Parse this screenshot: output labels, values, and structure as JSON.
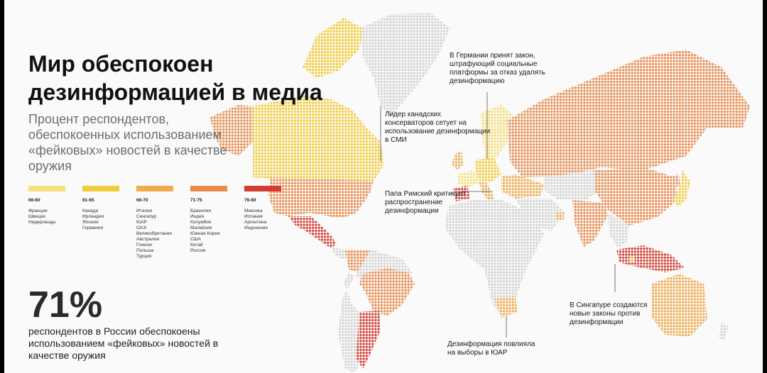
{
  "header": {
    "title": "Мир обеспокоен дезинформацией в медиа",
    "subtitle": "Процент респондентов, обеспокоенных использованием «фейковых» новостей в качестве оружия"
  },
  "colors": {
    "panel_bg": "#fafafa",
    "no_data": "#d4d4d4",
    "band_1": "#f6e07a",
    "band_2": "#f3cc3a",
    "band_3": "#f0ab4f",
    "band_4": "#e88c4e",
    "band_5": "#d23c32"
  },
  "legend": [
    {
      "range": "66-60",
      "color": "#f6e07a",
      "countries": [
        "Франция",
        "Швеция",
        "Нидерланды"
      ]
    },
    {
      "range": "61-65",
      "color": "#f3cc3a",
      "countries": [
        "Канада",
        "Ирландия",
        "Япония",
        "Германия"
      ]
    },
    {
      "range": "66-70",
      "color": "#f0ab4f",
      "countries": [
        "Италия",
        "Сингапур",
        "ЮАР",
        "ОАЭ",
        "Великобритания",
        "Австралия",
        "Гонконг",
        "Польша",
        "Турция"
      ]
    },
    {
      "range": "71-75",
      "color": "#e88c4e",
      "countries": [
        "Бразилия",
        "Индия",
        "Колумбия",
        "Малайзия",
        "Южная Корея",
        "США",
        "Китай",
        "Россия"
      ]
    },
    {
      "range": "76-80",
      "color": "#d23c32",
      "countries": [
        "Мексика",
        "Испания",
        "Аргентина",
        "Индонезия"
      ]
    }
  ],
  "stat": {
    "value": "71%",
    "caption": "респондентов в России обеспокоены использованием «фейковых» новостей в качестве оружия"
  },
  "annotations": {
    "germany": "В Германии принят закон, штрафующий социальные платформы за отказ удалять дезинформацию",
    "canada": "Лидер канадских консерваторов сетует на использование дезинформации в СМИ",
    "pope": "Папа Римский критикует распространение дезинформации",
    "singapore": "В Сингапуре создаются новые законы против дезинформации",
    "south_africa": "Дезинформация повлияла на выборы в ЮАР"
  }
}
